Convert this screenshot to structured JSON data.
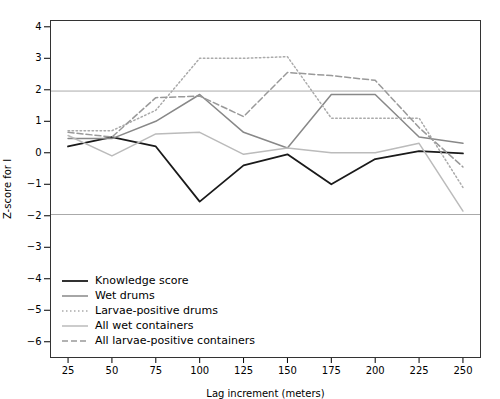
{
  "chart_data": {
    "type": "line",
    "x": [
      25,
      50,
      75,
      100,
      125,
      150,
      175,
      200,
      225,
      250
    ],
    "series": [
      {
        "name": "Knowledge score",
        "color": "#1a1a1a",
        "line_style": "solid",
        "values": [
          0.2,
          0.5,
          0.2,
          -1.55,
          -0.4,
          -0.05,
          -1.0,
          -0.2,
          0.05,
          -0.02
        ]
      },
      {
        "name": "Wet drums",
        "color": "#888888",
        "line_style": "solid",
        "values": [
          0.45,
          0.45,
          1.0,
          1.85,
          0.65,
          0.15,
          1.85,
          1.85,
          0.5,
          0.3
        ]
      },
      {
        "name": "Larvae-positive drums",
        "color": "#aaaaaa",
        "line_style": "dotted",
        "values": [
          0.7,
          0.7,
          1.35,
          3.0,
          3.0,
          3.05,
          1.1,
          1.1,
          1.1,
          -1.1
        ]
      },
      {
        "name": "All wet containers",
        "color": "#bbbbbb",
        "line_style": "solid",
        "values": [
          0.55,
          -0.1,
          0.6,
          0.65,
          -0.05,
          0.15,
          0.0,
          0.0,
          0.3,
          -1.85
        ]
      },
      {
        "name": "All larvae-positive containers",
        "color": "#999999",
        "line_style": "dashed",
        "values": [
          0.65,
          0.5,
          1.75,
          1.8,
          1.15,
          2.55,
          2.45,
          2.3,
          0.8,
          -0.45
        ]
      }
    ],
    "reference_lines": [
      {
        "value": 1.96,
        "color": "#aaaaaa"
      },
      {
        "value": -1.96,
        "color": "#aaaaaa"
      }
    ],
    "xlabel": "Lag increment (meters)",
    "ylabel": "Z-score for I",
    "xlim": [
      15,
      260
    ],
    "ylim": [
      -6.5,
      4.2
    ],
    "xticks": [
      25,
      50,
      75,
      100,
      125,
      150,
      175,
      200,
      225,
      250
    ],
    "yticks": [
      4,
      3,
      2,
      1,
      0,
      -1,
      -2,
      -3,
      -4,
      -5,
      -6
    ],
    "legend": "lower left",
    "grid": false
  }
}
